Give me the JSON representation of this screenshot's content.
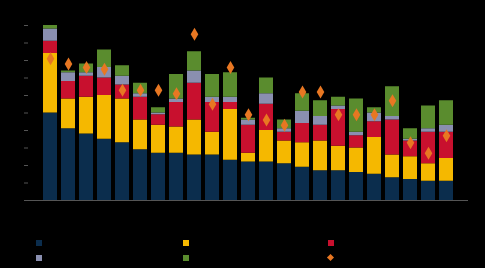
{
  "chart_data": {
    "type": "bar",
    "stacked": true,
    "tick_labels": false,
    "categories": [
      null,
      null,
      null,
      null,
      null,
      null,
      null,
      null,
      null,
      null,
      null,
      null,
      null,
      null,
      null,
      null,
      null,
      null,
      null,
      null,
      null,
      null,
      null
    ],
    "ylim": [
      0,
      10
    ],
    "yticks": [
      0,
      1,
      2,
      3,
      4,
      5,
      6,
      7,
      8,
      9,
      10
    ],
    "series": [
      {
        "color": "#0b2d4d",
        "values": [
          5.0,
          4.1,
          3.8,
          3.5,
          3.3,
          2.9,
          2.7,
          2.7,
          2.6,
          2.6,
          2.3,
          2.2,
          2.2,
          2.1,
          1.9,
          1.7,
          1.7,
          1.6,
          1.5,
          1.3,
          1.2,
          1.1,
          1.1
        ]
      },
      {
        "color": "#f5b800",
        "values": [
          3.4,
          1.7,
          2.1,
          2.5,
          2.5,
          1.7,
          1.6,
          1.5,
          2.0,
          1.3,
          2.9,
          0.5,
          1.8,
          1.3,
          1.4,
          1.7,
          1.4,
          1.4,
          2.1,
          1.3,
          1.3,
          1.0,
          1.3
        ]
      },
      {
        "color": "#c8102e",
        "values": [
          0.7,
          1.0,
          1.2,
          1.0,
          0.8,
          1.3,
          0.6,
          1.4,
          2.1,
          1.7,
          0.4,
          1.6,
          1.5,
          0.5,
          1.1,
          0.9,
          2.1,
          0.7,
          0.9,
          2.0,
          0.9,
          1.8,
          1.5
        ]
      },
      {
        "color": "#8a8fb0",
        "values": [
          0.7,
          0.5,
          0.2,
          0.6,
          0.5,
          0.2,
          0.1,
          0.2,
          0.7,
          0.3,
          0.3,
          0.3,
          0.6,
          0.2,
          0.7,
          0.5,
          0.2,
          0.2,
          0.5,
          0.2,
          0.1,
          0.2,
          0.4
        ]
      },
      {
        "color": "#5a8c2e",
        "values": [
          0.2,
          0.1,
          0.5,
          1.0,
          0.6,
          0.6,
          0.3,
          1.4,
          1.1,
          1.3,
          1.4,
          0.1,
          0.9,
          0.5,
          1.0,
          0.9,
          0.5,
          1.9,
          0.3,
          1.7,
          0.6,
          1.3,
          1.4
        ]
      },
      {
        "color": "#e87722",
        "type": "scatter",
        "marker": "diamond",
        "values": [
          8.1,
          7.8,
          7.6,
          7.5,
          6.3,
          6.3,
          6.3,
          6.1,
          9.5,
          5.5,
          7.6,
          4.9,
          4.6,
          4.3,
          6.2,
          6.2,
          4.9,
          4.9,
          4.9,
          5.7,
          3.3,
          2.7,
          3.7
        ]
      }
    ]
  }
}
